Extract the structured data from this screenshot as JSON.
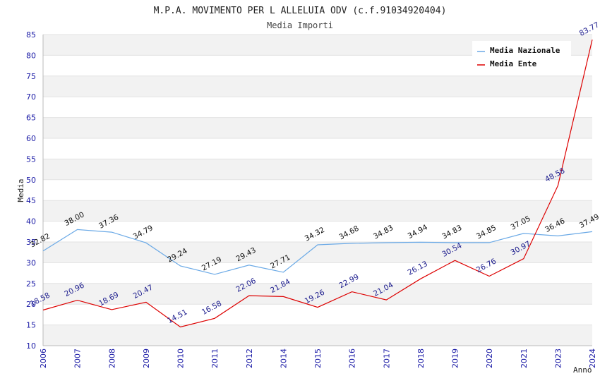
{
  "chart_data": {
    "type": "line",
    "title": "M.P.A. MOVIMENTO PER L ALLELUIA ODV (c.f.91034920404)",
    "subtitle": "Media Importi",
    "xlabel": "Anno",
    "ylabel": "Media",
    "ylim": [
      10,
      85
    ],
    "yticks": [
      10,
      15,
      20,
      25,
      30,
      35,
      40,
      45,
      50,
      55,
      60,
      65,
      70,
      75,
      80,
      85
    ],
    "categories": [
      "2006",
      "2007",
      "2008",
      "2009",
      "2010",
      "2011",
      "2012",
      "2014",
      "2015",
      "2016",
      "2017",
      "2018",
      "2019",
      "2020",
      "2021",
      "2023",
      "2024"
    ],
    "grid": "horizontal bands",
    "legend_position": "top-right",
    "series": [
      {
        "name": "Media Nazionale",
        "color": "#6aa9e6",
        "values": [
          32.82,
          38.0,
          37.36,
          34.79,
          29.24,
          27.19,
          29.43,
          27.71,
          34.32,
          34.68,
          34.83,
          34.94,
          34.83,
          34.85,
          37.05,
          36.46,
          37.49
        ],
        "labels": [
          "32.82",
          "38.00",
          "37.36",
          "34.79",
          "29.24",
          "27.19",
          "29.43",
          "27.71",
          "34.32",
          "34.68",
          "34.83",
          "34.94",
          "34.83",
          "34.85",
          "37.05",
          "36.46",
          "37.49"
        ]
      },
      {
        "name": "Media Ente",
        "color": "#dd0000",
        "values": [
          18.58,
          20.96,
          18.69,
          20.47,
          14.51,
          16.58,
          22.06,
          21.84,
          19.26,
          22.99,
          21.04,
          26.13,
          30.54,
          26.76,
          30.97,
          48.58,
          83.77
        ],
        "labels": [
          "18.58",
          "20.96",
          "18.69",
          "20.47",
          "14.51",
          "16.58",
          "22.06",
          "21.84",
          "19.26",
          "22.99",
          "21.04",
          "26.13",
          "30.54",
          "26.76",
          "30.97",
          "48.58",
          "83.77"
        ]
      }
    ]
  }
}
